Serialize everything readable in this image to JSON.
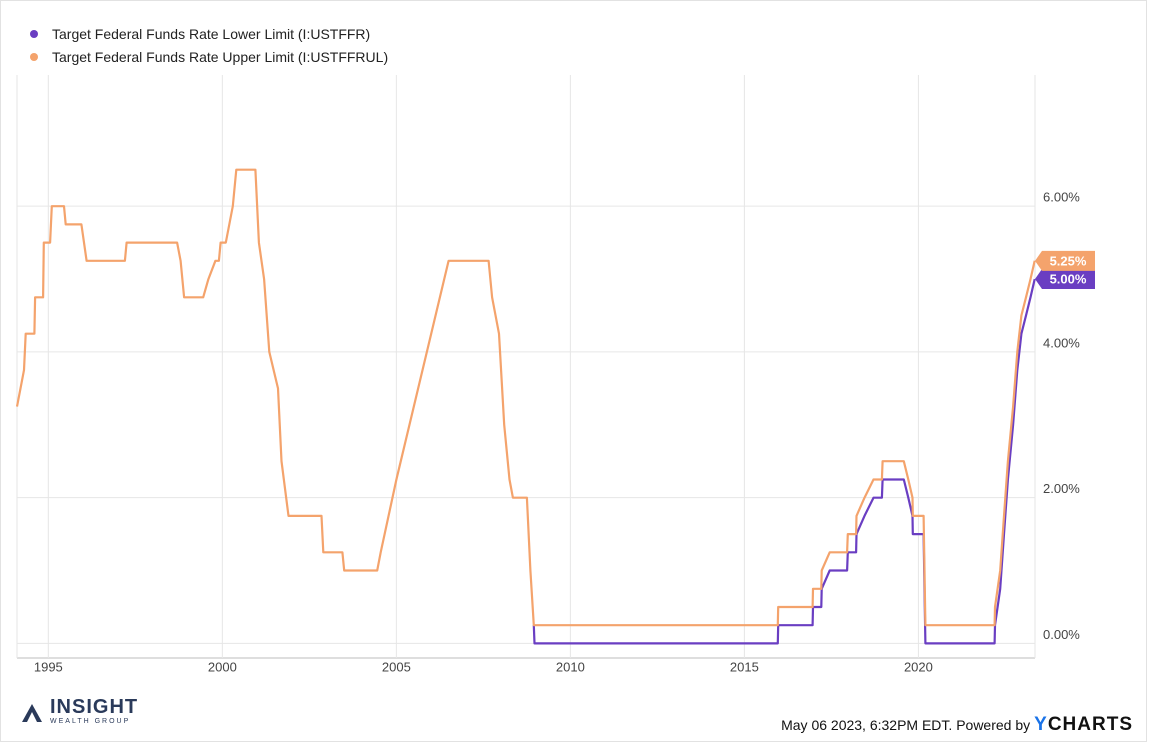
{
  "chart_data": {
    "type": "line",
    "title": "",
    "xlabel": "",
    "ylabel": "",
    "xlim": [
      1994.1,
      2023.35
    ],
    "ylim": [
      -0.2,
      7.8
    ],
    "x_ticks": [
      1995,
      2000,
      2005,
      2010,
      2015,
      2020
    ],
    "y_ticks": [
      0,
      2,
      4,
      6
    ],
    "y_tick_labels": [
      "0.00%",
      "2.00%",
      "4.00%",
      "6.00%"
    ],
    "grid": true,
    "legend_position": "top-left",
    "series": [
      {
        "name": "Target Federal Funds Rate Lower Limit (I:USTFFR)",
        "color": "#6a3ec2",
        "end_label": "5.00%",
        "points": [
          [
            2008.95,
            0.25
          ],
          [
            2008.97,
            0
          ],
          [
            2015.96,
            0
          ],
          [
            2015.97,
            0.25
          ],
          [
            2016.96,
            0.25
          ],
          [
            2016.97,
            0.5
          ],
          [
            2017.21,
            0.5
          ],
          [
            2017.22,
            0.75
          ],
          [
            2017.45,
            1.0
          ],
          [
            2017.95,
            1.0
          ],
          [
            2017.97,
            1.25
          ],
          [
            2018.21,
            1.25
          ],
          [
            2018.22,
            1.5
          ],
          [
            2018.45,
            1.75
          ],
          [
            2018.71,
            2.0
          ],
          [
            2018.95,
            2.0
          ],
          [
            2018.97,
            2.25
          ],
          [
            2019.58,
            2.25
          ],
          [
            2019.71,
            2.0
          ],
          [
            2019.83,
            1.75
          ],
          [
            2019.84,
            1.5
          ],
          [
            2020.15,
            1.5
          ],
          [
            2020.2,
            0
          ],
          [
            2022.19,
            0
          ],
          [
            2022.2,
            0.25
          ],
          [
            2022.35,
            0.75
          ],
          [
            2022.46,
            1.5
          ],
          [
            2022.57,
            2.25
          ],
          [
            2022.72,
            3.0
          ],
          [
            2022.84,
            3.75
          ],
          [
            2022.96,
            4.25
          ],
          [
            2023.09,
            4.5
          ],
          [
            2023.22,
            4.75
          ],
          [
            2023.34,
            5.0
          ]
        ]
      },
      {
        "name": "Target Federal Funds Rate Upper Limit (I:USTFFRUL)",
        "color": "#f4a36c",
        "end_label": "5.25%",
        "points": [
          [
            1994.1,
            3.25
          ],
          [
            1994.2,
            3.5
          ],
          [
            1994.3,
            3.75
          ],
          [
            1994.35,
            4.25
          ],
          [
            1994.6,
            4.25
          ],
          [
            1994.62,
            4.75
          ],
          [
            1994.85,
            4.75
          ],
          [
            1994.87,
            5.5
          ],
          [
            1995.05,
            5.5
          ],
          [
            1995.1,
            6.0
          ],
          [
            1995.45,
            6.0
          ],
          [
            1995.5,
            5.75
          ],
          [
            1995.95,
            5.75
          ],
          [
            1996.1,
            5.25
          ],
          [
            1997.2,
            5.25
          ],
          [
            1997.25,
            5.5
          ],
          [
            1998.7,
            5.5
          ],
          [
            1998.8,
            5.25
          ],
          [
            1998.9,
            4.75
          ],
          [
            1999.45,
            4.75
          ],
          [
            1999.6,
            5.0
          ],
          [
            1999.8,
            5.25
          ],
          [
            1999.9,
            5.25
          ],
          [
            1999.95,
            5.5
          ],
          [
            2000.1,
            5.5
          ],
          [
            2000.2,
            5.75
          ],
          [
            2000.3,
            6.0
          ],
          [
            2000.4,
            6.5
          ],
          [
            2000.95,
            6.5
          ],
          [
            2001.05,
            5.5
          ],
          [
            2001.2,
            5.0
          ],
          [
            2001.35,
            4.0
          ],
          [
            2001.6,
            3.5
          ],
          [
            2001.7,
            2.5
          ],
          [
            2001.9,
            1.75
          ],
          [
            2002.85,
            1.75
          ],
          [
            2002.9,
            1.25
          ],
          [
            2003.45,
            1.25
          ],
          [
            2003.5,
            1.0
          ],
          [
            2004.45,
            1.0
          ],
          [
            2004.55,
            1.25
          ],
          [
            2005.0,
            2.25
          ],
          [
            2005.5,
            3.25
          ],
          [
            2006.0,
            4.25
          ],
          [
            2006.5,
            5.25
          ],
          [
            2007.65,
            5.25
          ],
          [
            2007.75,
            4.75
          ],
          [
            2007.95,
            4.25
          ],
          [
            2008.1,
            3.0
          ],
          [
            2008.25,
            2.25
          ],
          [
            2008.35,
            2.0
          ],
          [
            2008.75,
            2.0
          ],
          [
            2008.85,
            1.0
          ],
          [
            2008.95,
            0.25
          ],
          [
            2015.96,
            0.25
          ],
          [
            2015.97,
            0.5
          ],
          [
            2016.96,
            0.5
          ],
          [
            2016.97,
            0.75
          ],
          [
            2017.21,
            0.75
          ],
          [
            2017.22,
            1.0
          ],
          [
            2017.45,
            1.25
          ],
          [
            2017.95,
            1.25
          ],
          [
            2017.97,
            1.5
          ],
          [
            2018.21,
            1.5
          ],
          [
            2018.22,
            1.75
          ],
          [
            2018.45,
            2.0
          ],
          [
            2018.71,
            2.25
          ],
          [
            2018.95,
            2.25
          ],
          [
            2018.97,
            2.5
          ],
          [
            2019.58,
            2.5
          ],
          [
            2019.71,
            2.25
          ],
          [
            2019.83,
            2.0
          ],
          [
            2019.84,
            1.75
          ],
          [
            2020.15,
            1.75
          ],
          [
            2020.2,
            0.25
          ],
          [
            2022.19,
            0.25
          ],
          [
            2022.2,
            0.5
          ],
          [
            2022.35,
            1.0
          ],
          [
            2022.46,
            1.75
          ],
          [
            2022.57,
            2.5
          ],
          [
            2022.72,
            3.25
          ],
          [
            2022.84,
            4.0
          ],
          [
            2022.96,
            4.5
          ],
          [
            2023.09,
            4.75
          ],
          [
            2023.22,
            5.0
          ],
          [
            2023.34,
            5.25
          ]
        ]
      }
    ]
  },
  "footer": {
    "credit_text": "May 06 2023, 6:32PM EDT. Powered by",
    "brand_y": "Y",
    "brand_rest": "CHARTS",
    "logo_name": "INSIGHT",
    "logo_sub": "WEALTH GROUP"
  }
}
